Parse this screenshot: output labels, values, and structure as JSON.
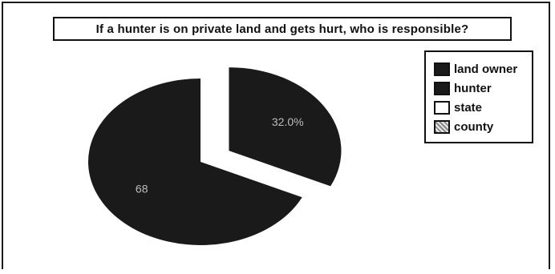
{
  "chart_data": {
    "type": "pie",
    "title": "If a hunter is on private land and gets hurt, who is responsible?",
    "categories": [
      "land owner",
      "hunter",
      "state",
      "county"
    ],
    "values": [
      68,
      32.0,
      0,
      0
    ],
    "labels": [
      "68",
      "32.0%",
      "",
      ""
    ],
    "colors": [
      "#1a1a1a",
      "#1a1a1a",
      "#ffffff",
      "#cfcfcf"
    ],
    "legend": "right",
    "exploded": [
      "hunter"
    ]
  }
}
